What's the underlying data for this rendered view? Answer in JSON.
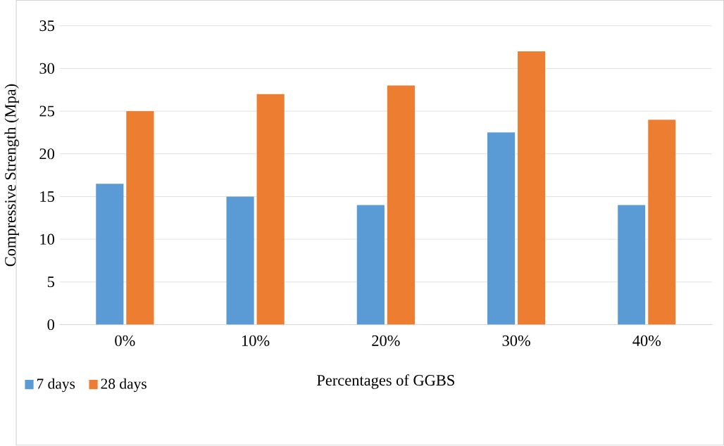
{
  "chart_data": {
    "type": "bar",
    "xlabel": "Percentages of GGBS",
    "ylabel": "Compressive Strength (Mpa)",
    "categories": [
      "0%",
      "10%",
      "20%",
      "30%",
      "40%"
    ],
    "series": [
      {
        "name": "7 days",
        "color": "#5b9bd5",
        "values": [
          16.5,
          15,
          14,
          22.5,
          14
        ]
      },
      {
        "name": "28 days",
        "color": "#ed7d31",
        "values": [
          25,
          27,
          28,
          32,
          24
        ]
      }
    ],
    "ylim": [
      0,
      35
    ],
    "yticks": [
      0,
      5,
      10,
      15,
      20,
      25,
      30,
      35
    ],
    "grid": "y",
    "legend": "bottom left"
  }
}
